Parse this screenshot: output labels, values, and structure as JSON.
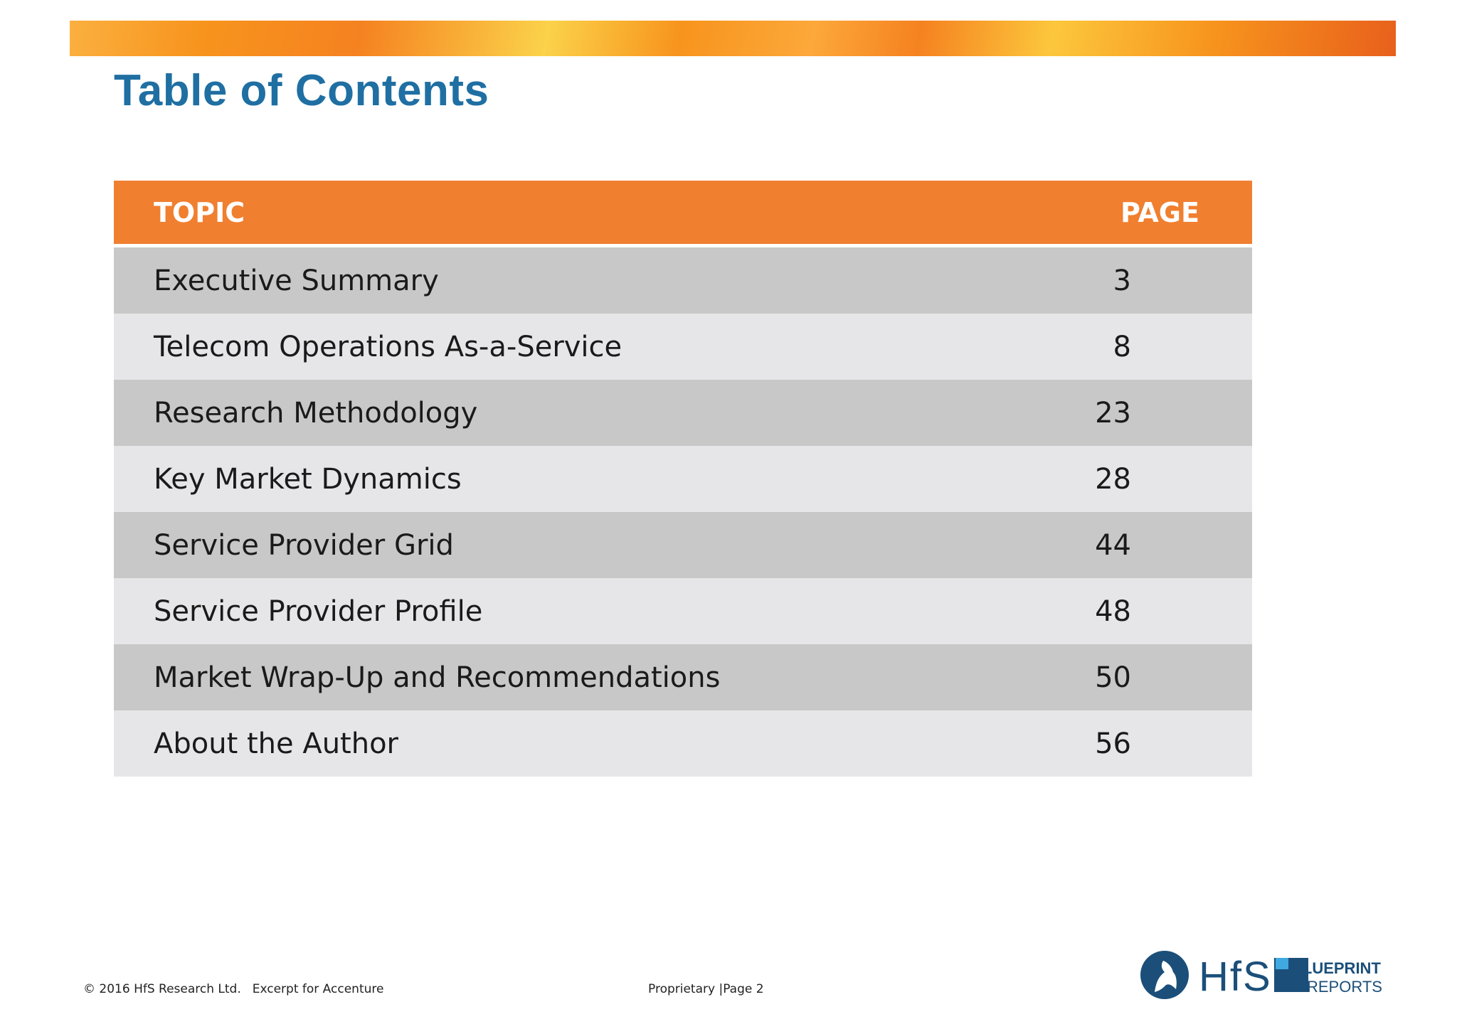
{
  "title": "Table of Contents",
  "table": {
    "header": {
      "topic": "TOPIC",
      "page": "PAGE"
    },
    "rows": [
      {
        "topic": "Executive Summary",
        "page": "3"
      },
      {
        "topic": "Telecom Operations As-a-Service",
        "page": "8"
      },
      {
        "topic": "Research Methodology",
        "page": "23"
      },
      {
        "topic": "Key Market Dynamics",
        "page": "28"
      },
      {
        "topic": "Service Provider Grid",
        "page": "44"
      },
      {
        "topic": "Service Provider Profile",
        "page": "48"
      },
      {
        "topic": "Market Wrap-Up and Recommendations",
        "page": "50"
      },
      {
        "topic": "About the Author",
        "page": "56"
      }
    ]
  },
  "footer": {
    "copyright": "© 2016 HfS Research Ltd.",
    "excerpt": "Excerpt for Accenture",
    "proprietary": "Proprietary |Page 2"
  },
  "logo": {
    "brand": "HfS",
    "product_line1": "BLUEPRINT",
    "product_line2": "REPORTS"
  },
  "colors": {
    "title_blue": "#1f6fa3",
    "header_orange": "#f07f30",
    "row_dark": "#c8c8c8",
    "row_light": "#e6e6e8"
  }
}
